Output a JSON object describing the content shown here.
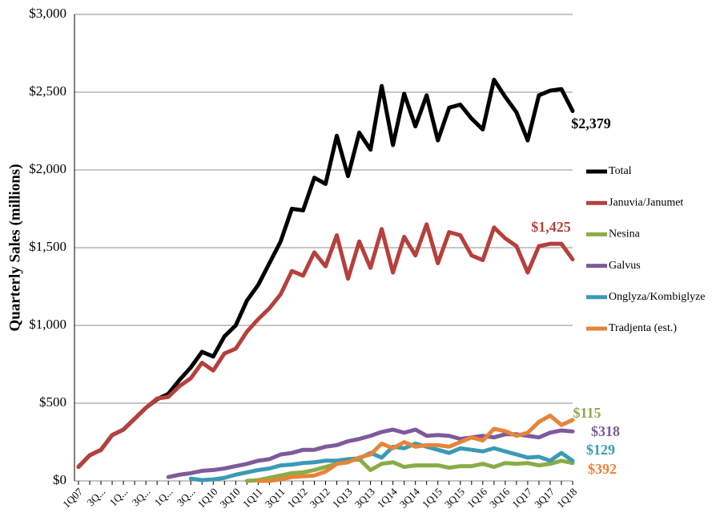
{
  "chart_data": {
    "type": "line",
    "y_label": "Quarterly Sales (millions)",
    "categories": [
      "1Q07",
      null,
      "3Q...",
      null,
      "1Q...",
      null,
      "3Q...",
      null,
      "1Q...",
      null,
      "3Q...",
      null,
      "1Q10",
      null,
      "3Q10",
      null,
      "1Q11",
      null,
      "3Q11",
      null,
      "1Q12",
      null,
      "3Q12",
      null,
      "1Q13",
      null,
      "3Q13",
      null,
      "1Q14",
      null,
      "3Q14",
      null,
      "1Q15",
      null,
      "3Q15",
      null,
      "1Q16",
      null,
      "3Q16",
      null,
      "1Q17",
      null,
      "3Q17",
      null,
      "1Q18"
    ],
    "ylim": [
      0,
      3000
    ],
    "yticks": [
      {
        "value": 0,
        "label": "$0"
      },
      {
        "value": 500,
        "label": "$500"
      },
      {
        "value": 1000,
        "label": "$1,000"
      },
      {
        "value": 1500,
        "label": "$1,500"
      },
      {
        "value": 2000,
        "label": "$2,000"
      },
      {
        "value": 2500,
        "label": "$2,500"
      },
      {
        "value": 3000,
        "label": "$3,000"
      }
    ],
    "grid": true,
    "legend": "right",
    "series": [
      {
        "name": "Total",
        "color": "#000000",
        "values": [
          90,
          165,
          200,
          295,
          330,
          400,
          470,
          525,
          560,
          650,
          730,
          830,
          800,
          930,
          1000,
          1160,
          1260,
          1400,
          1540,
          1750,
          1740,
          1950,
          1910,
          2220,
          1960,
          2240,
          2130,
          2540,
          2160,
          2490,
          2280,
          2480,
          2190,
          2400,
          2420,
          2330,
          2260,
          2580,
          2470,
          2370,
          2190,
          2480,
          2510,
          2520,
          2379
        ],
        "value_labels": [
          null,
          null,
          null,
          null,
          null,
          null,
          null,
          null,
          null,
          null,
          null,
          null,
          null,
          null,
          null,
          null,
          null,
          null,
          null,
          null,
          null,
          null,
          null,
          null,
          null,
          null,
          null,
          null,
          null,
          null,
          null,
          null,
          null,
          null,
          null,
          null,
          null,
          null,
          null,
          null,
          null,
          null,
          null,
          null,
          "$2,379"
        ]
      },
      {
        "name": "Januvia/Janumet",
        "color": "#b5403c",
        "values": [
          90,
          165,
          200,
          295,
          330,
          400,
          470,
          530,
          540,
          610,
          660,
          760,
          710,
          820,
          850,
          960,
          1040,
          1110,
          1200,
          1350,
          1320,
          1470,
          1380,
          1580,
          1300,
          1540,
          1370,
          1620,
          1340,
          1570,
          1450,
          1650,
          1400,
          1600,
          1580,
          1450,
          1420,
          1630,
          1560,
          1510,
          1340,
          1510,
          1525,
          1525,
          1425
        ],
        "value_labels": [
          null,
          null,
          null,
          null,
          null,
          null,
          null,
          null,
          null,
          null,
          null,
          null,
          null,
          null,
          null,
          null,
          null,
          null,
          null,
          null,
          null,
          null,
          null,
          null,
          null,
          null,
          null,
          null,
          null,
          null,
          null,
          null,
          null,
          null,
          null,
          null,
          null,
          null,
          null,
          null,
          null,
          null,
          null,
          null,
          "$1,425"
        ]
      },
      {
        "name": "Nesina",
        "color": "#8aac46",
        "values": [
          null,
          null,
          null,
          null,
          null,
          null,
          null,
          null,
          null,
          null,
          null,
          null,
          null,
          null,
          null,
          0,
          5,
          20,
          35,
          50,
          55,
          70,
          90,
          110,
          130,
          140,
          70,
          110,
          120,
          90,
          100,
          100,
          100,
          85,
          95,
          95,
          110,
          90,
          115,
          110,
          115,
          100,
          110,
          130,
          115
        ],
        "value_labels": [
          null,
          null,
          null,
          null,
          null,
          null,
          null,
          null,
          null,
          null,
          null,
          null,
          null,
          null,
          null,
          null,
          null,
          null,
          null,
          null,
          null,
          null,
          null,
          null,
          null,
          null,
          null,
          null,
          null,
          null,
          null,
          null,
          null,
          null,
          null,
          null,
          null,
          null,
          null,
          null,
          null,
          null,
          null,
          null,
          "$115"
        ]
      },
      {
        "name": "Galvus",
        "color": "#7e5a9b",
        "values": [
          null,
          null,
          null,
          null,
          null,
          null,
          null,
          null,
          25,
          40,
          50,
          65,
          70,
          80,
          95,
          110,
          130,
          140,
          170,
          180,
          200,
          200,
          220,
          230,
          255,
          270,
          290,
          315,
          330,
          310,
          330,
          290,
          295,
          290,
          270,
          280,
          290,
          280,
          300,
          300,
          290,
          280,
          310,
          325,
          318
        ],
        "value_labels": [
          null,
          null,
          null,
          null,
          null,
          null,
          null,
          null,
          null,
          null,
          null,
          null,
          null,
          null,
          null,
          null,
          null,
          null,
          null,
          null,
          null,
          null,
          null,
          null,
          null,
          null,
          null,
          null,
          null,
          null,
          null,
          null,
          null,
          null,
          null,
          null,
          null,
          null,
          null,
          null,
          null,
          null,
          null,
          null,
          "$318"
        ]
      },
      {
        "name": "Onglyza/Kombiglyze",
        "color": "#3b9ab5",
        "values": [
          null,
          null,
          null,
          null,
          null,
          null,
          null,
          null,
          null,
          null,
          15,
          5,
          10,
          20,
          40,
          55,
          70,
          80,
          100,
          105,
          115,
          120,
          130,
          130,
          140,
          145,
          180,
          150,
          220,
          210,
          240,
          220,
          200,
          180,
          210,
          200,
          190,
          210,
          190,
          170,
          150,
          155,
          130,
          180,
          129
        ],
        "value_labels": [
          null,
          null,
          null,
          null,
          null,
          null,
          null,
          null,
          null,
          null,
          null,
          null,
          null,
          null,
          null,
          null,
          null,
          null,
          null,
          null,
          null,
          null,
          null,
          null,
          null,
          null,
          null,
          null,
          null,
          null,
          null,
          null,
          null,
          null,
          null,
          null,
          null,
          null,
          null,
          null,
          null,
          null,
          null,
          null,
          "$129"
        ]
      },
      {
        "name": "Tradjenta (est.)",
        "color": "#e6843a",
        "values": [
          null,
          null,
          null,
          null,
          null,
          null,
          null,
          null,
          null,
          null,
          null,
          null,
          null,
          null,
          null,
          null,
          0,
          0,
          10,
          25,
          30,
          35,
          60,
          110,
          120,
          150,
          170,
          240,
          210,
          250,
          220,
          230,
          230,
          220,
          250,
          280,
          260,
          335,
          320,
          290,
          310,
          380,
          420,
          360,
          392
        ],
        "value_labels": [
          null,
          null,
          null,
          null,
          null,
          null,
          null,
          null,
          null,
          null,
          null,
          null,
          null,
          null,
          null,
          null,
          null,
          null,
          null,
          null,
          null,
          null,
          null,
          null,
          null,
          null,
          null,
          null,
          null,
          null,
          null,
          null,
          null,
          null,
          null,
          null,
          null,
          null,
          null,
          null,
          null,
          null,
          null,
          null,
          "$392"
        ]
      }
    ]
  }
}
